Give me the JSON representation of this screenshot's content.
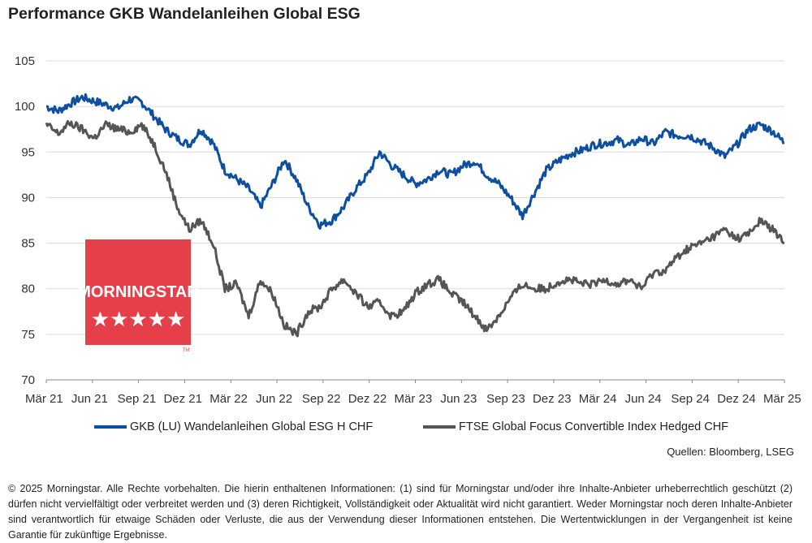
{
  "title": "Performance GKB Wandelanleihen Global ESG",
  "source": "Quellen: Bloomberg, LSEG",
  "disclaimer": "© 2025 Morningstar. Alle Rechte vorbehalten. Die hierin enthaltenen Informationen: (1) sind für Morningstar und/oder ihre Inhalte-Anbieter urheberrechtlich geschützt (2) dürfen nicht vervielfältigt oder verbreitet werden und (3) deren Richtigkeit, Vollständigkeit oder Aktualität wird nicht garantiert. Weder Morningstar noch deren Inhalte-Anbieter sind verantwortlich für etwaige Schäden oder Verluste, die aus der Verwendung dieser Informationen entstehen. Die Wertentwicklungen in der Vergangenheit ist keine Garantie für zukünftige Ergebnisse.",
  "logo": {
    "text": "MORNINGSTAR",
    "stars": "★★★★★",
    "tm": "TM",
    "color": "#e5404a"
  },
  "chart_data": {
    "type": "line",
    "ylim": [
      70,
      105
    ],
    "yticks": [
      70,
      75,
      80,
      85,
      90,
      95,
      100,
      105
    ],
    "xticks": [
      "Mär 21",
      "Jun 21",
      "Sep 21",
      "Dez 21",
      "Mär 22",
      "Jun 22",
      "Sep 22",
      "Dez 22",
      "Mär 23",
      "Jun 23",
      "Sep 23",
      "Dez 23",
      "Mär 24",
      "Jun 24",
      "Sep 24",
      "Dez 24",
      "Mär 25"
    ],
    "grid": "horizontal",
    "legend_position": "bottom",
    "series": [
      {
        "name": "GKB (LU) Wandelanleihen Global ESG H CHF",
        "color": "#0d4fa0",
        "values": [
          100,
          99.5,
          100.3,
          101,
          100.6,
          100.2,
          99.8,
          100.8,
          100.5,
          99,
          97.5,
          96.5,
          95.8,
          97.5,
          96,
          93,
          92,
          91,
          89,
          91.5,
          94.2,
          92,
          89,
          87,
          87.5,
          89,
          91,
          92.5,
          95,
          93.5,
          92.5,
          91.5,
          92,
          93,
          92.5,
          93.5,
          94,
          92.5,
          91.5,
          90,
          88,
          90.5,
          93,
          94,
          94.8,
          95.2,
          95.8,
          96,
          96.3,
          95.7,
          96.5,
          95.9,
          97.2,
          96.8,
          96.8,
          96.2,
          95.5,
          94.5,
          95.8,
          97.5,
          98,
          97.3,
          96
        ]
      },
      {
        "name": "FTSE Global Focus Convertible Index Hedged CHF",
        "color": "#555555",
        "values": [
          98,
          97,
          98.2,
          97.5,
          96.5,
          98,
          97.5,
          97.2,
          98,
          96,
          93,
          89,
          86.5,
          87.5,
          85,
          80,
          80.5,
          77,
          81,
          79.5,
          76,
          75,
          77.5,
          78,
          80,
          81,
          79.5,
          78,
          78.5,
          77,
          77.5,
          79.5,
          80.5,
          81,
          79.5,
          78.5,
          77,
          75.5,
          77,
          79,
          80.5,
          80,
          80,
          80.8,
          81,
          80.5,
          80.5,
          81,
          80.5,
          81,
          80,
          81.8,
          82,
          83.5,
          84.5,
          85,
          85.7,
          86.5,
          85.5,
          86,
          87.5,
          86.5,
          85
        ]
      }
    ]
  }
}
